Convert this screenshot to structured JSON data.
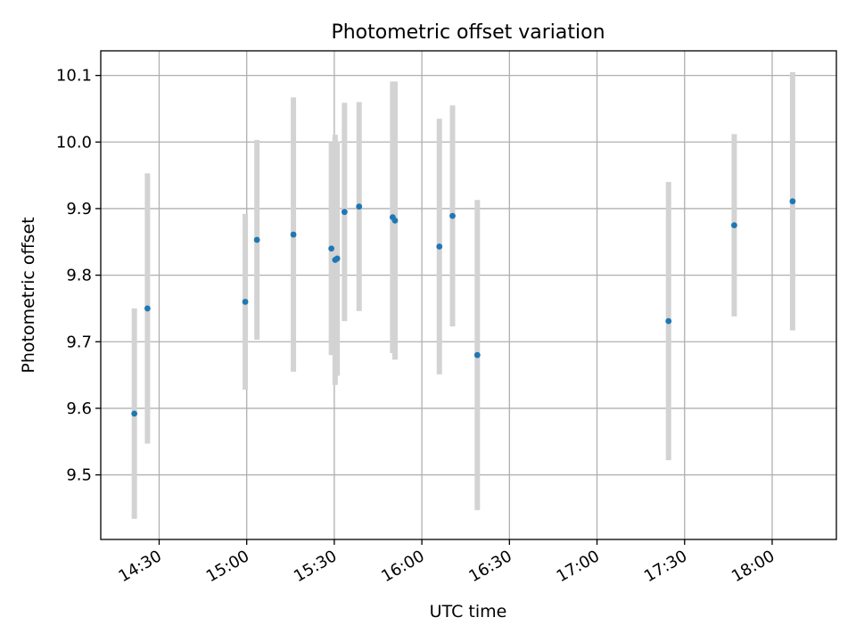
{
  "chart_data": {
    "type": "scatter",
    "title": "Photometric offset variation",
    "xlabel": "UTC time",
    "ylabel": "Photometric offset",
    "xlim": [
      "14:10",
      "18:22"
    ],
    "ylim": [
      9.403,
      10.137
    ],
    "xticks": [
      "14:30",
      "15:00",
      "15:30",
      "16:00",
      "16:30",
      "17:00",
      "17:30",
      "18:00"
    ],
    "yticks": [
      9.5,
      9.6,
      9.7,
      9.8,
      9.9,
      10.0,
      10.1
    ],
    "ytick_labels": [
      "9.5",
      "9.6",
      "9.7",
      "9.8",
      "9.9",
      "10.0",
      "10.1"
    ],
    "grid": true,
    "marker_color": "#1f77b4",
    "errorbar_color": "#d3d3d3",
    "points": [
      {
        "x": "14:21.5",
        "y": 9.592,
        "err": 0.158
      },
      {
        "x": "14:26.0",
        "y": 9.75,
        "err": 0.203
      },
      {
        "x": "14:59.5",
        "y": 9.76,
        "err": 0.132
      },
      {
        "x": "15:03.5",
        "y": 9.853,
        "err": 0.15
      },
      {
        "x": "15:16.0",
        "y": 9.861,
        "err": 0.206
      },
      {
        "x": "15:29.0",
        "y": 9.84,
        "err": 0.16
      },
      {
        "x": "15:30.3",
        "y": 9.823,
        "err": 0.188
      },
      {
        "x": "15:31.0",
        "y": 9.825,
        "err": 0.176
      },
      {
        "x": "15:33.5",
        "y": 9.895,
        "err": 0.164
      },
      {
        "x": "15:38.5",
        "y": 9.903,
        "err": 0.157
      },
      {
        "x": "15:50.0",
        "y": 9.887,
        "err": 0.204
      },
      {
        "x": "15:50.8",
        "y": 9.882,
        "err": 0.209
      },
      {
        "x": "16:06.0",
        "y": 9.843,
        "err": 0.192
      },
      {
        "x": "16:10.5",
        "y": 9.889,
        "err": 0.166
      },
      {
        "x": "16:19.0",
        "y": 9.68,
        "err": 0.233
      },
      {
        "x": "17:24.5",
        "y": 9.731,
        "err": 0.209
      },
      {
        "x": "17:47.0",
        "y": 9.875,
        "err": 0.137
      },
      {
        "x": "18:07.0",
        "y": 9.911,
        "err": 0.194
      }
    ]
  }
}
